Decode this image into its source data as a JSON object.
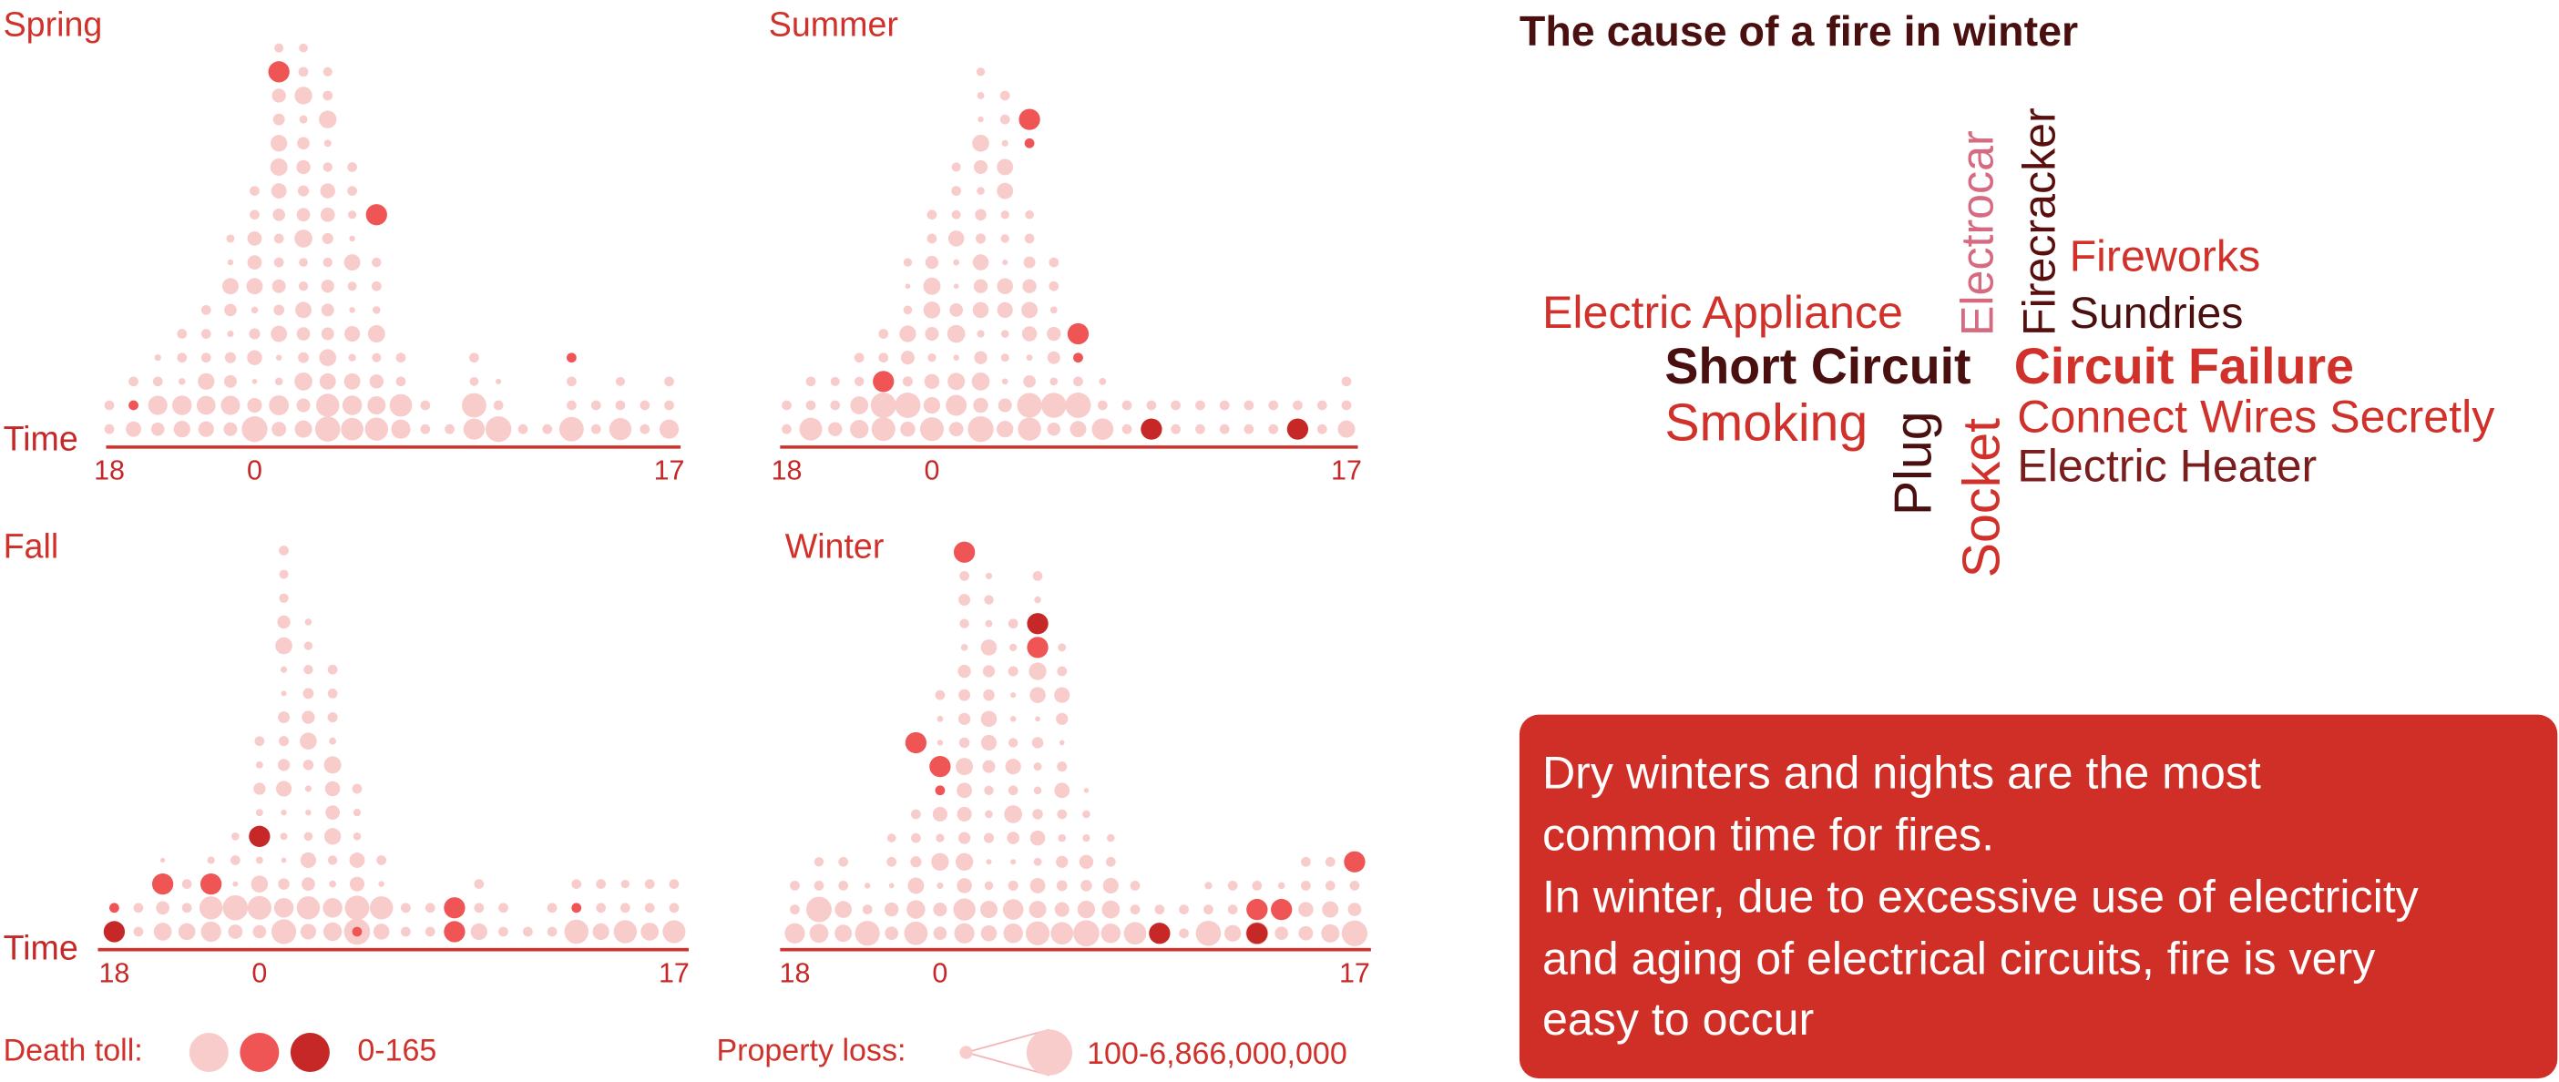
{
  "chart_data": [
    {
      "type": "scatter",
      "title": "Spring",
      "ylabel": "Time",
      "x_ticks": [
        "18",
        "0",
        "17"
      ],
      "highlight_points": [
        {
          "hour": 19,
          "level": 2,
          "death": 2
        },
        {
          "hour": 1,
          "level": 16,
          "death": 3
        },
        {
          "hour": 5,
          "level": 10,
          "death": 3
        },
        {
          "hour": 13,
          "level": 4,
          "death": 2
        }
      ]
    },
    {
      "type": "scatter",
      "title": "Summer",
      "x_ticks": [
        "18",
        "0",
        "17"
      ],
      "highlight_points": [
        {
          "hour": 22,
          "level": 3,
          "death": 3
        },
        {
          "hour": 4,
          "level": 14,
          "death": 3
        },
        {
          "hour": 4,
          "level": 13,
          "death": 2
        },
        {
          "hour": 6,
          "level": 5,
          "death": 3
        },
        {
          "hour": 6,
          "level": 4,
          "death": 2
        },
        {
          "hour": 9,
          "level": 1,
          "death": 4
        },
        {
          "hour": 15,
          "level": 1,
          "death": 4
        }
      ]
    },
    {
      "type": "scatter",
      "title": "Fall",
      "ylabel": "Time",
      "x_ticks": [
        "18",
        "0",
        "17"
      ],
      "highlight_points": [
        {
          "hour": 18,
          "level": 1,
          "death": 4
        },
        {
          "hour": 18,
          "level": 2,
          "death": 2
        },
        {
          "hour": 20,
          "level": 3,
          "death": 3
        },
        {
          "hour": 22,
          "level": 3,
          "death": 3
        },
        {
          "hour": 0,
          "level": 5,
          "death": 4
        },
        {
          "hour": 4,
          "level": 1,
          "death": 2
        },
        {
          "hour": 8,
          "level": 2,
          "death": 3
        },
        {
          "hour": 8,
          "level": 1,
          "death": 3
        },
        {
          "hour": 13,
          "level": 2,
          "death": 2
        }
      ]
    },
    {
      "type": "scatter",
      "title": "Winter",
      "x_ticks": [
        "18",
        "0",
        "17"
      ],
      "highlight_points": [
        {
          "hour": 23,
          "level": 9,
          "death": 3
        },
        {
          "hour": 0,
          "level": 8,
          "death": 3
        },
        {
          "hour": 0,
          "level": 7,
          "death": 2
        },
        {
          "hour": 1,
          "level": 17,
          "death": 3
        },
        {
          "hour": 4,
          "level": 14,
          "death": 4
        },
        {
          "hour": 4,
          "level": 13,
          "death": 3
        },
        {
          "hour": 9,
          "level": 1,
          "death": 4
        },
        {
          "hour": 13,
          "level": 1,
          "death": 4
        },
        {
          "hour": 13,
          "level": 2,
          "death": 3
        },
        {
          "hour": 14,
          "level": 2,
          "death": 3
        },
        {
          "hour": 17,
          "level": 4,
          "death": 3
        }
      ]
    }
  ],
  "legend": {
    "death_label": "Death toll:",
    "death_range": "0-165",
    "death_colors": [
      "#f9cccc",
      "#f05555",
      "#c62828"
    ],
    "property_label": "Property loss:",
    "property_range": "100-6,866,000,000"
  },
  "word_cloud": {
    "title": "The cause of a fire in winter",
    "words": [
      {
        "text": "Electrocar",
        "color": "#d66a80",
        "vertical": true
      },
      {
        "text": "Firecracker",
        "color": "#5a0f0f",
        "vertical": true
      },
      {
        "text": "Fireworks",
        "color": "#d0312a",
        "vertical": false
      },
      {
        "text": "Electric Appliance",
        "color": "#d0312a",
        "vertical": false
      },
      {
        "text": "Sundries",
        "color": "#4a0f0f",
        "vertical": false
      },
      {
        "text": "Short Circuit",
        "color": "#4a0f0f",
        "vertical": false
      },
      {
        "text": "Circuit Failure",
        "color": "#d0312a",
        "vertical": false
      },
      {
        "text": "Smoking",
        "color": "#d0312a",
        "vertical": false
      },
      {
        "text": "Plug",
        "color": "#4a0f0f",
        "vertical": true
      },
      {
        "text": "Socket",
        "color": "#d0312a",
        "vertical": true
      },
      {
        "text": "Connect Wires Secretly",
        "color": "#d0312a",
        "vertical": false
      },
      {
        "text": "Electric Heater",
        "color": "#7a1d1d",
        "vertical": false
      }
    ]
  },
  "info_box": {
    "lines": [
      "Dry winters and nights are the most",
      "common time for fires.",
      "In winter, due to excessive use of electricity",
      "and aging of electrical circuits, fire is very",
      "easy to occur"
    ]
  },
  "colors": {
    "accent": "#d0312a",
    "light_dot": "#f9cccc",
    "mid_dot": "#f05555",
    "dark_dot": "#c62828"
  }
}
